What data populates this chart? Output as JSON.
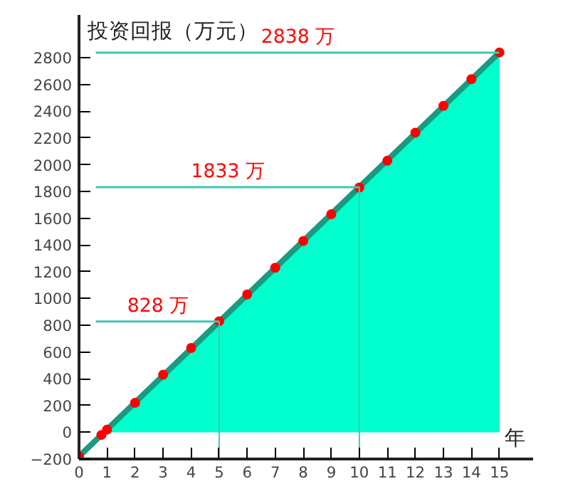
{
  "chart_data": {
    "type": "line",
    "ylabel": "投资回报（万元）",
    "xlabel": "年",
    "xlim": [
      0,
      16.2
    ],
    "ylim": [
      -200,
      3120
    ],
    "xticks": [
      0,
      1,
      2,
      3,
      4,
      5,
      6,
      7,
      8,
      9,
      10,
      11,
      12,
      13,
      14,
      15
    ],
    "yticks": [
      -200,
      0,
      200,
      400,
      600,
      800,
      1000,
      1200,
      1400,
      1600,
      1800,
      2000,
      2200,
      2400,
      2600,
      2800
    ],
    "grid": false,
    "series": [
      {
        "type": "area",
        "color": "#00ffcc",
        "x": [
          1,
          15
        ],
        "values": [
          20,
          2840
        ]
      },
      {
        "color": "#1a9a80",
        "x": [
          0,
          15
        ],
        "values": [
          -180,
          2840
        ]
      },
      {
        "type": "scatter",
        "color": "#ff0000",
        "marker": "circle",
        "x": [
          0,
          0.8,
          1,
          2,
          3,
          4,
          5,
          6,
          7,
          8,
          9,
          10,
          11,
          12,
          13,
          14,
          15
        ],
        "values": [
          -180,
          -20,
          20,
          220,
          430,
          630,
          830,
          1030,
          1230,
          1430,
          1630,
          1830,
          2030,
          2240,
          2440,
          2640,
          2840
        ]
      }
    ],
    "ref_lines": [
      {
        "axis": "y",
        "value": 828,
        "label": "828 万",
        "color": "#40c8b0"
      },
      {
        "axis": "y",
        "value": 1833,
        "label": "1833 万",
        "color": "#40c8b0"
      },
      {
        "axis": "y",
        "value": 2838,
        "label": "2838 万",
        "color": "#40c8b0"
      },
      {
        "axis": "x",
        "value": 5,
        "label": null,
        "color": "#40c8b0"
      },
      {
        "axis": "x",
        "value": 10,
        "label": null,
        "color": "#40c8b0"
      }
    ]
  }
}
